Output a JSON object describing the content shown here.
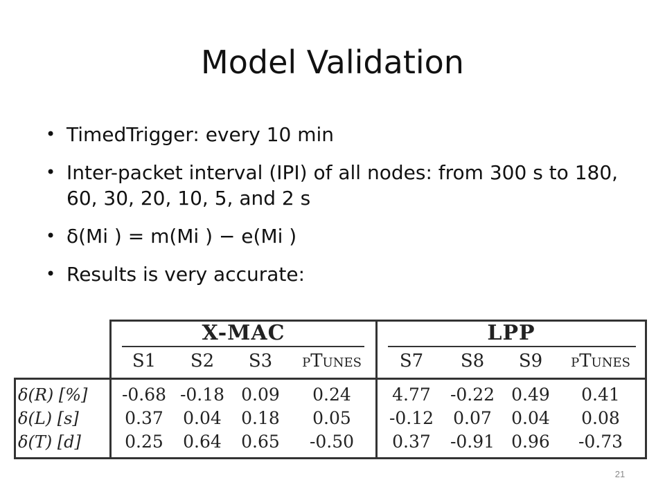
{
  "slide": {
    "title": "Model Validation",
    "page_number": "21"
  },
  "bullets": [
    "TimedTrigger: every 10 min",
    "Inter-packet interval (IPI) of all nodes: from 300 s to 180, 60, 30, 20, 10, 5, and 2 s",
    "δ(Mi ) = m(Mi ) − e(Mi )",
    "Results is very accurate:"
  ],
  "bullet_glyph": "•",
  "results_table": {
    "groups": [
      {
        "label": "X-MAC",
        "columns": [
          "S1",
          "S2",
          "S3",
          "pTunes"
        ]
      },
      {
        "label": "LPP",
        "columns": [
          "S7",
          "S8",
          "S9",
          "pTunes"
        ]
      }
    ],
    "rows": [
      {
        "label": "δ(R) [%]",
        "values": [
          "-0.68",
          "-0.18",
          "0.09",
          "0.24",
          "4.77",
          "-0.22",
          "0.49",
          "0.41"
        ]
      },
      {
        "label": "δ(L) [s]",
        "values": [
          "0.37",
          "0.04",
          "0.18",
          "0.05",
          "-0.12",
          "0.07",
          "0.04",
          "0.08"
        ]
      },
      {
        "label": "δ(T) [d]",
        "values": [
          "0.25",
          "0.64",
          "0.65",
          "-0.50",
          "0.37",
          "-0.91",
          "0.96",
          "-0.73"
        ]
      }
    ]
  }
}
